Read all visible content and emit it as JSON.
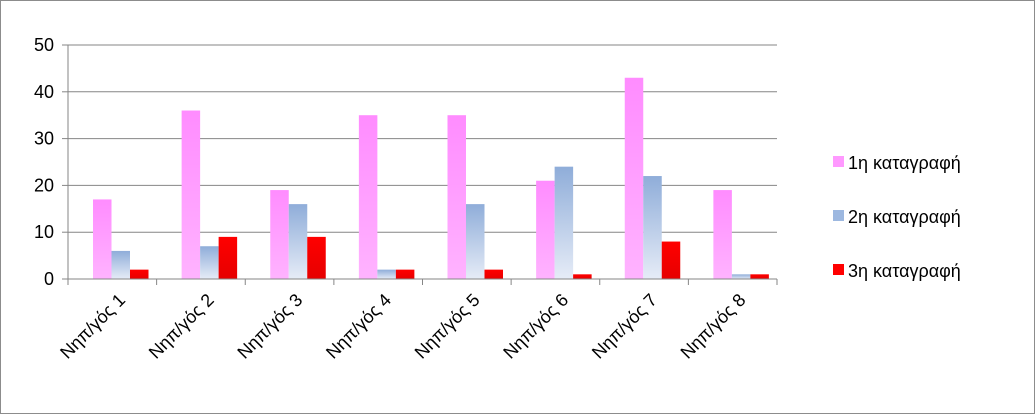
{
  "chart_data": {
    "type": "bar",
    "categories": [
      "Νηπ/γός 1",
      "Νηπ/γός 2",
      "Νηπ/γός 3",
      "Νηπ/γός 4",
      "Νηπ/γός 5",
      "Νηπ/γός 6",
      "Νηπ/γός 7",
      "Νηπ/γός 8"
    ],
    "series": [
      {
        "name": "1η καταγραφή",
        "values": [
          17,
          36,
          19,
          35,
          35,
          21,
          43,
          19
        ],
        "color": "#ff99ff"
      },
      {
        "name": "2η καταγραφή",
        "values": [
          6,
          7,
          16,
          2,
          16,
          24,
          22,
          1
        ],
        "color": "#9db8e0"
      },
      {
        "name": "3η καταγραφή",
        "values": [
          2,
          9,
          9,
          2,
          2,
          1,
          8,
          1
        ],
        "color": "#ff0000"
      }
    ],
    "ylim": [
      0,
      50
    ],
    "yticks": [
      0,
      10,
      20,
      30,
      40,
      50
    ],
    "grid": true,
    "legend_position": "right",
    "title": "",
    "xlabel": "",
    "ylabel": ""
  }
}
